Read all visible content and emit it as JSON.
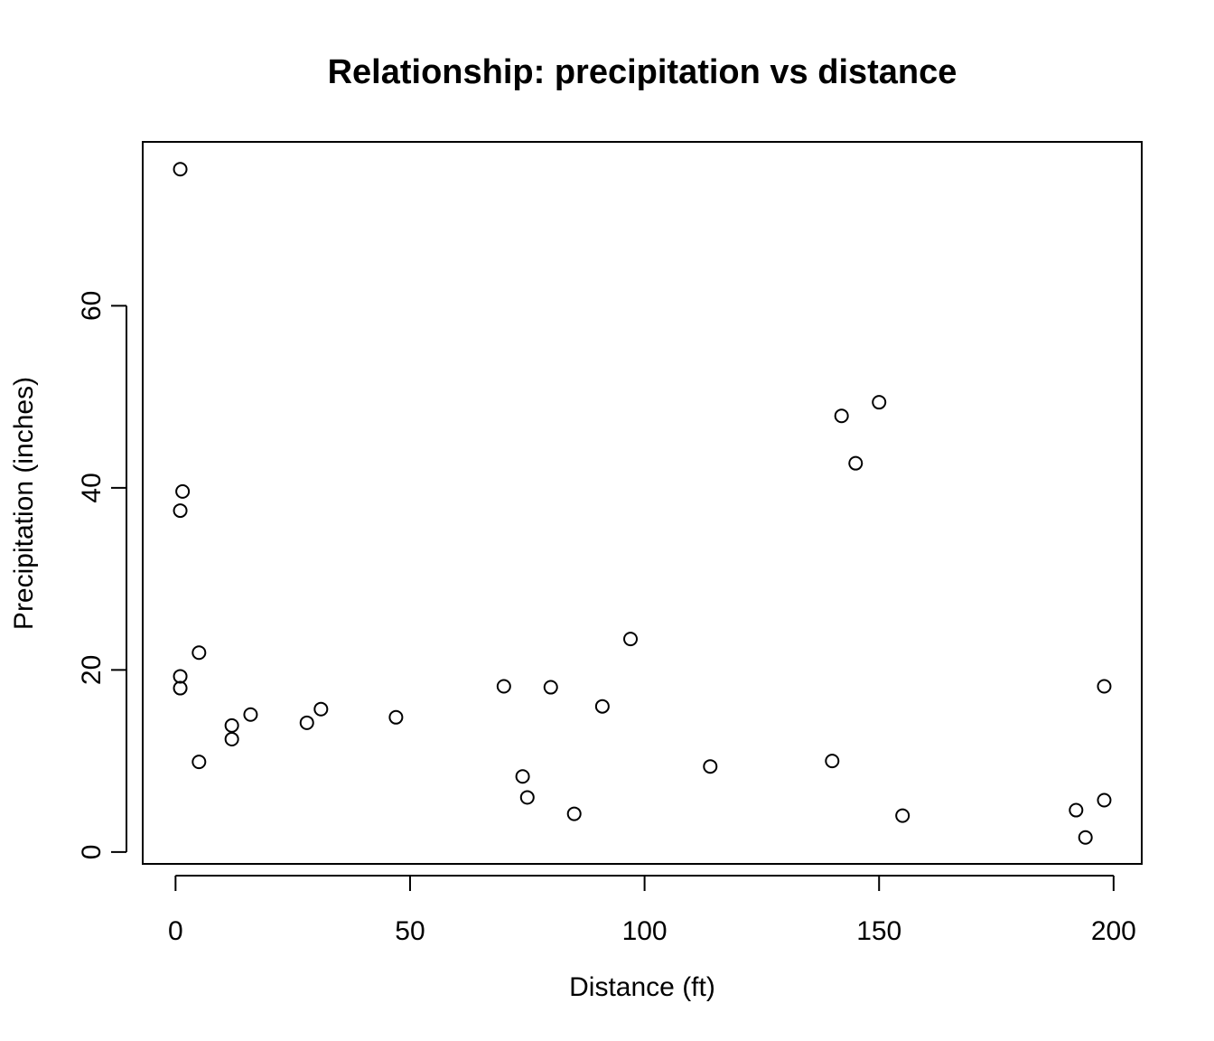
{
  "chart_data": {
    "type": "scatter",
    "title": "Relationship: precipitation vs distance",
    "xlabel": "Distance (ft)",
    "ylabel": "Precipitation (inches)",
    "xlim": [
      -7,
      206
    ],
    "ylim": [
      -1.3,
      78
    ],
    "x_ticks": [
      0,
      50,
      100,
      150,
      200
    ],
    "y_ticks": [
      0,
      20,
      40,
      60
    ],
    "grid": false,
    "legend": "none",
    "marker": "open-circle",
    "points": [
      {
        "x": 1,
        "y": 75.0
      },
      {
        "x": 1.5,
        "y": 39.6
      },
      {
        "x": 1,
        "y": 37.5
      },
      {
        "x": 5,
        "y": 21.9
      },
      {
        "x": 1,
        "y": 19.3
      },
      {
        "x": 1,
        "y": 18.0
      },
      {
        "x": 5,
        "y": 9.9
      },
      {
        "x": 12,
        "y": 13.9
      },
      {
        "x": 12,
        "y": 12.4
      },
      {
        "x": 16,
        "y": 15.1
      },
      {
        "x": 28,
        "y": 14.2
      },
      {
        "x": 31,
        "y": 15.7
      },
      {
        "x": 47,
        "y": 14.8
      },
      {
        "x": 70,
        "y": 18.2
      },
      {
        "x": 74,
        "y": 8.3
      },
      {
        "x": 75,
        "y": 6.0
      },
      {
        "x": 80,
        "y": 18.1
      },
      {
        "x": 85,
        "y": 4.2
      },
      {
        "x": 91,
        "y": 16.0
      },
      {
        "x": 97,
        "y": 23.4
      },
      {
        "x": 114,
        "y": 9.4
      },
      {
        "x": 140,
        "y": 10.0
      },
      {
        "x": 142,
        "y": 47.9
      },
      {
        "x": 145,
        "y": 42.7
      },
      {
        "x": 150,
        "y": 49.4
      },
      {
        "x": 155,
        "y": 4.0
      },
      {
        "x": 192,
        "y": 4.6
      },
      {
        "x": 194,
        "y": 1.6
      },
      {
        "x": 198,
        "y": 5.7
      },
      {
        "x": 198,
        "y": 18.2
      }
    ]
  }
}
